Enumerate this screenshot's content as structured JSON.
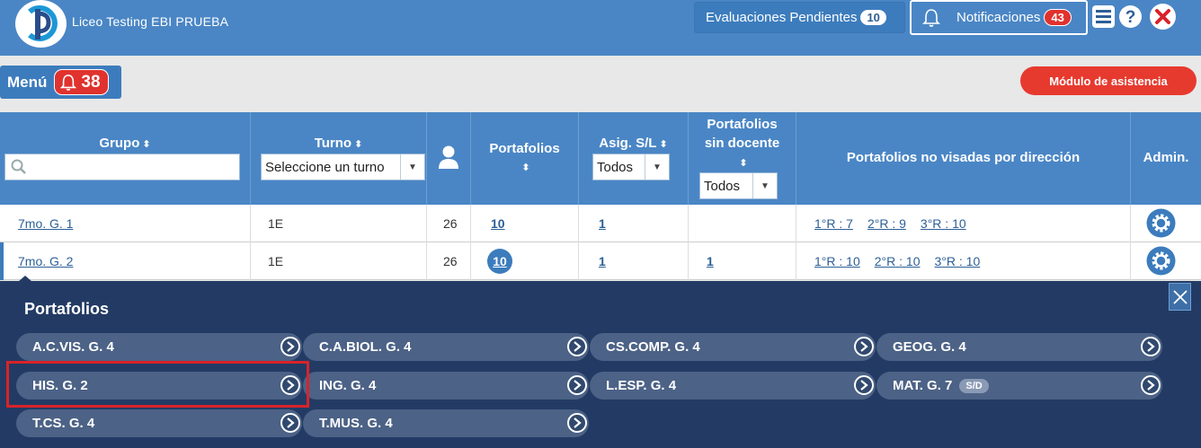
{
  "header": {
    "school_name": "Liceo Testing EBI PRUEBA",
    "pending_label": "Evaluaciones Pendientes",
    "pending_count": "10",
    "notif_label": "Notificaciones",
    "notif_count": "43"
  },
  "menu": {
    "label": "Menú",
    "alerts": "38",
    "asistencia_label": "Módulo de asistencia"
  },
  "table": {
    "headers": {
      "grupo": "Grupo",
      "turno": "Turno",
      "portafolios": "Portafolios",
      "asig": "Asig. S/L",
      "sin_docente_1": "Portafolios",
      "sin_docente_2": "sin docente",
      "no_visadas": "Portafolios no visadas por dirección",
      "admin": "Admin."
    },
    "filters": {
      "turno_placeholder": "Seleccione un turno",
      "asig_value": "Todos",
      "sin_docente_value": "Todos"
    },
    "rows": [
      {
        "grupo": "7mo. G. 1",
        "turno": "1E",
        "alumnos": "26",
        "portafolios": "10",
        "asig": "1",
        "sin_docente": "",
        "r1": "1°R : 7",
        "r2": "2°R : 9",
        "r3": "3°R : 10"
      },
      {
        "grupo": "7mo. G. 2",
        "turno": "1E",
        "alumnos": "26",
        "portafolios": "10",
        "asig": "1",
        "sin_docente": "1",
        "r1": "1°R : 10",
        "r2": "2°R : 10",
        "r3": "3°R : 10"
      }
    ]
  },
  "popup": {
    "title": "Portafolios",
    "items": [
      {
        "label": "A.C.VIS. G. 4"
      },
      {
        "label": "C.A.BIOL. G. 4"
      },
      {
        "label": "CS.COMP. G. 4"
      },
      {
        "label": "GEOG. G. 4"
      },
      {
        "label": "HIS. G. 2"
      },
      {
        "label": "ING. G. 4"
      },
      {
        "label": "L.ESP. G. 4"
      },
      {
        "label": "MAT. G. 7",
        "badge": "S/D"
      },
      {
        "label": "T.CS. G. 4"
      },
      {
        "label": "T.MUS. G. 4"
      }
    ]
  },
  "colors": {
    "primary": "#4a86c5",
    "popup_bg": "#233b64",
    "pill": "#4c6286",
    "alert": "#e0322e",
    "highlight": "#d8232a"
  }
}
